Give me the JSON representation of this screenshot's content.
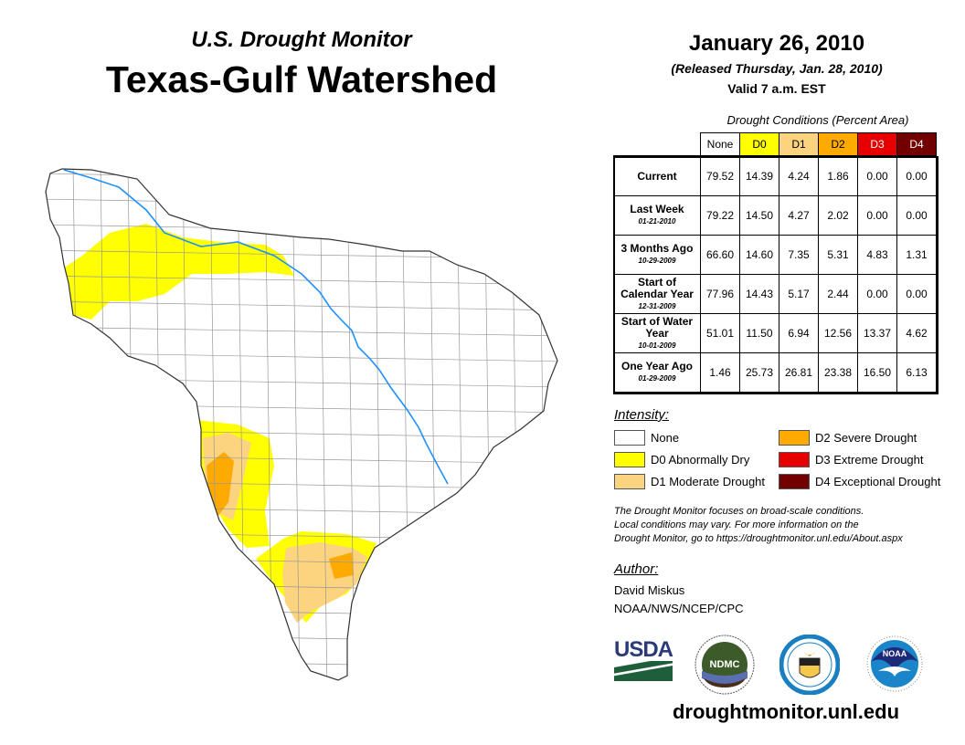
{
  "header": {
    "subtitle": "U.S. Drought Monitor",
    "title": "Texas-Gulf Watershed",
    "date": "January 26, 2010",
    "released": "(Released Thursday, Jan. 28, 2010)",
    "valid": "Valid 7 a.m. EST"
  },
  "table": {
    "caption": "Drought Conditions (Percent Area)",
    "columns": [
      "None",
      "D0",
      "D1",
      "D2",
      "D3",
      "D4"
    ],
    "rows": [
      {
        "label": "Current",
        "date": "",
        "values": [
          "79.52",
          "14.39",
          "4.24",
          "1.86",
          "0.00",
          "0.00"
        ]
      },
      {
        "label": "Last Week",
        "date": "01-21-2010",
        "values": [
          "79.22",
          "14.50",
          "4.27",
          "2.02",
          "0.00",
          "0.00"
        ]
      },
      {
        "label": "3 Months Ago",
        "date": "10-29-2009",
        "values": [
          "66.60",
          "14.60",
          "7.35",
          "5.31",
          "4.83",
          "1.31"
        ]
      },
      {
        "label": "Start of Calendar Year",
        "date": "12-31-2009",
        "values": [
          "77.96",
          "14.43",
          "5.17",
          "2.44",
          "0.00",
          "0.00"
        ]
      },
      {
        "label": "Start of Water Year",
        "date": "10-01-2009",
        "values": [
          "51.01",
          "11.50",
          "6.94",
          "12.56",
          "13.37",
          "4.62"
        ]
      },
      {
        "label": "One Year Ago",
        "date": "01-29-2009",
        "values": [
          "1.46",
          "25.73",
          "26.81",
          "23.38",
          "16.50",
          "6.13"
        ]
      }
    ]
  },
  "legend": {
    "title": "Intensity:",
    "items": [
      {
        "label": "None",
        "color": "#ffffff"
      },
      {
        "label": "D0 Abnormally Dry",
        "color": "#ffff00"
      },
      {
        "label": "D1 Moderate Drought",
        "color": "#fcd37f"
      },
      {
        "label": "D2 Severe Drought",
        "color": "#ffaa00"
      },
      {
        "label": "D3 Extreme Drought",
        "color": "#e60000"
      },
      {
        "label": "D4 Exceptional Drought",
        "color": "#730000"
      }
    ]
  },
  "note": [
    "The Drought Monitor focuses on broad-scale conditions.",
    "Local conditions may vary. For more information on the",
    "Drought Monitor, go to https://droughtmonitor.unl.edu/About.aspx"
  ],
  "author": {
    "heading": "Author:",
    "name": "David Miskus",
    "org": "NOAA/NWS/NCEP/CPC"
  },
  "logos": {
    "usda": "USDA",
    "ndmc": "NDMC",
    "noaa": "NOAA"
  },
  "footer": {
    "url": "droughtmonitor.unl.edu"
  },
  "colors": {
    "river": "#1e90ff",
    "county_lines": "#999999"
  }
}
